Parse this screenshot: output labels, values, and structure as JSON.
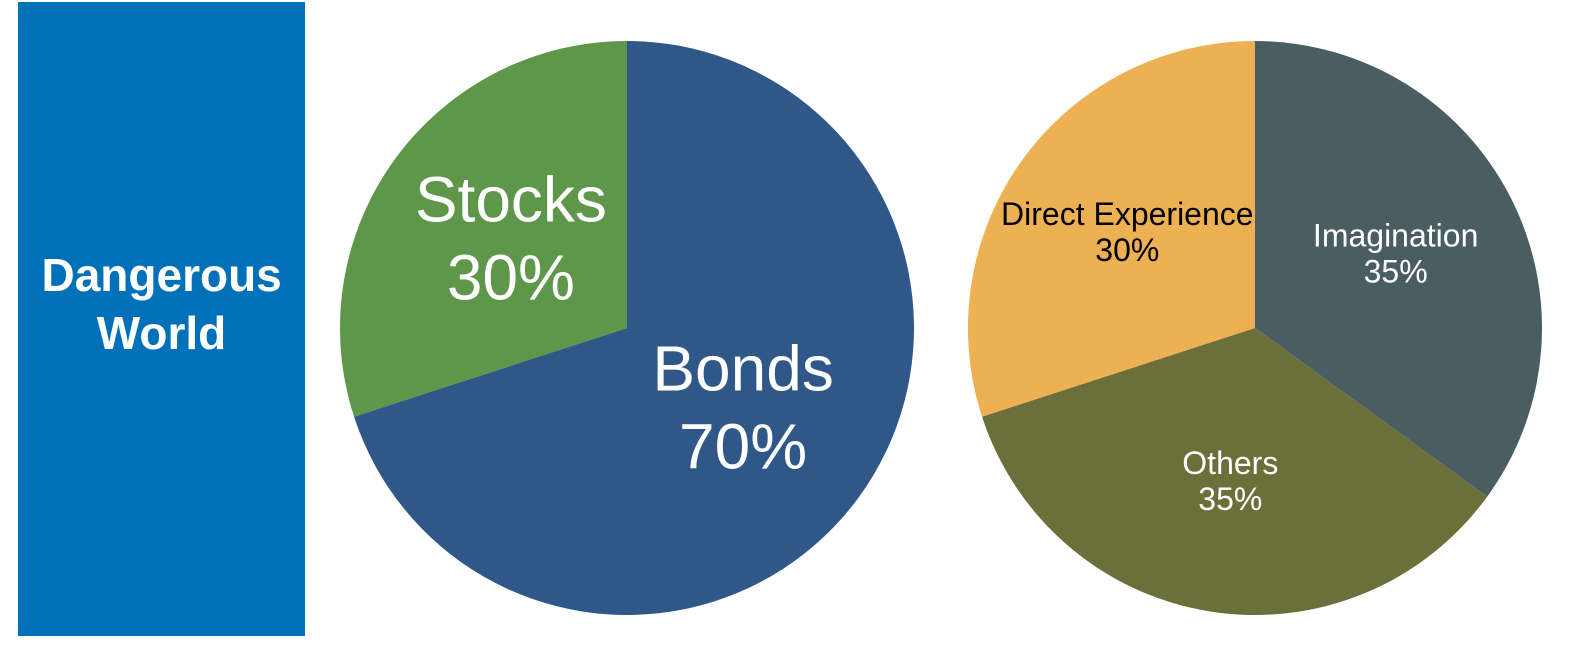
{
  "panel": {
    "title": "Dangerous World",
    "color": "#0071b9"
  },
  "chart_data": [
    {
      "type": "pie",
      "categories": [
        "Bonds",
        "Stocks"
      ],
      "values": [
        70,
        30
      ],
      "value_labels": [
        "70%",
        "30%"
      ],
      "colors": [
        "#2f5888",
        "#5e9749"
      ],
      "label_colors": [
        "#ffffff",
        "#ffffff"
      ]
    },
    {
      "type": "pie",
      "categories": [
        "Imagination",
        "Others",
        "Direct Experience"
      ],
      "values": [
        35,
        35,
        30
      ],
      "value_labels": [
        "35%",
        "35%",
        "30%"
      ],
      "colors": [
        "#4a5e61",
        "#6b6f3a",
        "#edb052"
      ],
      "label_colors": [
        "#ffffff",
        "#ffffff",
        "#000000"
      ]
    }
  ]
}
